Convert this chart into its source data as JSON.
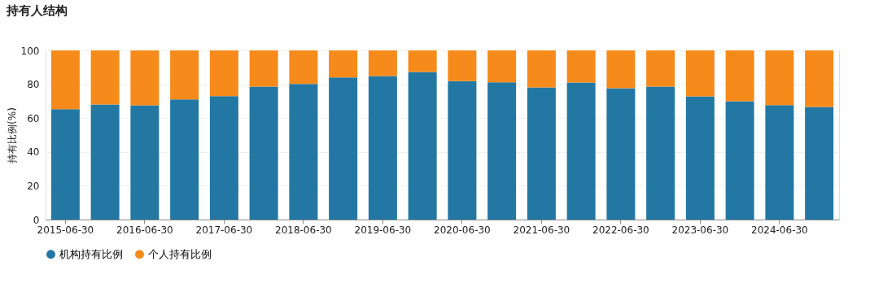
{
  "chart_data": {
    "type": "bar",
    "title": "持有人结构",
    "ylabel": "持有比例(%)",
    "stacked": true,
    "categories": [
      "2015-06-30",
      null,
      "2016-06-30",
      null,
      "2017-06-30",
      null,
      "2018-06-30",
      null,
      "2019-06-30",
      null,
      "2020-06-30",
      null,
      "2021-06-30",
      null,
      "2022-06-30",
      null,
      "2023-06-30",
      null,
      "2024-06-30",
      null
    ],
    "series": [
      {
        "name": "机构持有比例",
        "color": "#2277a3",
        "values": [
          65.3,
          68.0,
          67.5,
          71.0,
          73.0,
          78.6,
          80.2,
          84.0,
          84.8,
          87.2,
          81.9,
          81.1,
          78.1,
          81.0,
          77.6,
          78.6,
          72.8,
          69.9,
          67.7,
          66.6
        ]
      },
      {
        "name": "个人持有比例",
        "color": "#f68a1a",
        "values": [
          34.7,
          32.0,
          32.5,
          29.0,
          27.0,
          21.4,
          19.8,
          16.0,
          15.2,
          12.8,
          18.1,
          18.9,
          21.9,
          19.0,
          22.4,
          21.4,
          27.2,
          30.1,
          32.3,
          33.4
        ]
      }
    ],
    "ylim": [
      0,
      100
    ],
    "yticks": [
      0,
      20,
      40,
      60,
      80,
      100
    ],
    "grid": "y",
    "legend": "bottom"
  }
}
